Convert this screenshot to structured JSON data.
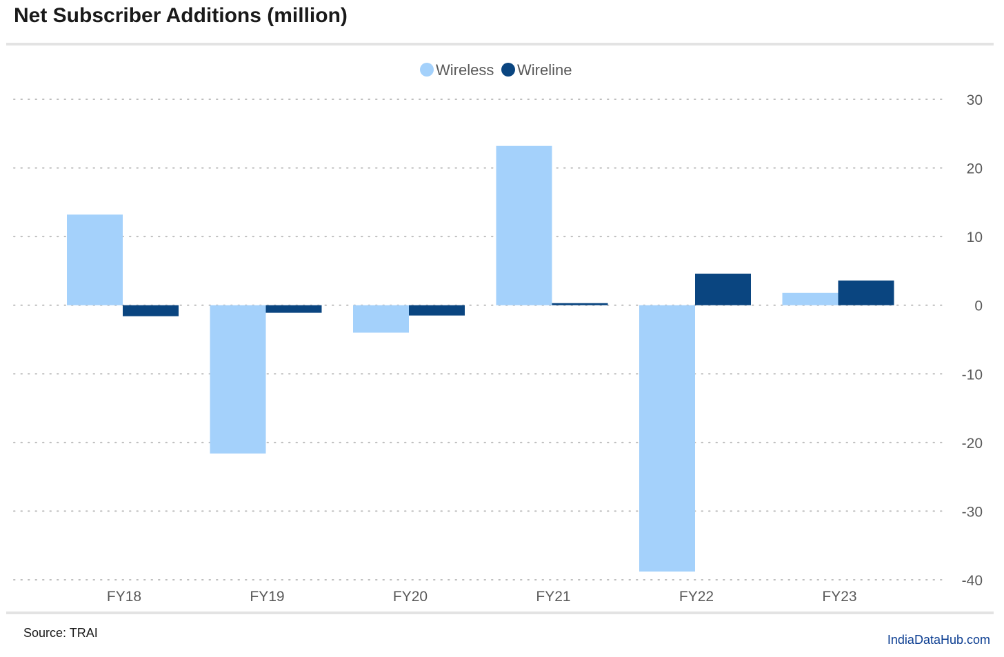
{
  "header": {
    "title": "Net Subscriber Additions (million)"
  },
  "footer": {
    "source": "Source: TRAI",
    "brand": "IndiaDataHub.com"
  },
  "colors": {
    "wireless": "#a4d1fb",
    "wireline": "#0a4580",
    "grid": "#bdbdbd",
    "text": "#595959"
  },
  "chart_data": {
    "type": "bar",
    "title": "Net Subscriber Additions (million)",
    "categories": [
      "FY18",
      "FY19",
      "FY20",
      "FY21",
      "FY22",
      "FY23"
    ],
    "series": [
      {
        "name": "Wireless",
        "values": [
          13.2,
          -21.6,
          -4.0,
          23.2,
          -38.8,
          1.8
        ]
      },
      {
        "name": "Wireline",
        "values": [
          -1.6,
          -1.1,
          -1.5,
          0.3,
          4.6,
          3.6
        ]
      }
    ],
    "ylim": [
      -40,
      30
    ],
    "yticks": [
      30,
      20,
      10,
      0,
      -10,
      -20,
      -30,
      -40
    ],
    "y_axis_side": "right",
    "grid": true,
    "legend": "top-center",
    "xlabel": "",
    "ylabel": ""
  }
}
